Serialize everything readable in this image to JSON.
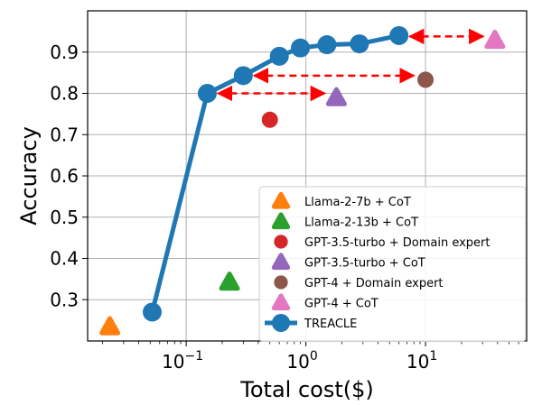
{
  "chart_data": {
    "type": "scatter",
    "xlabel": "Total cost($)",
    "ylabel": "Accuracy",
    "xscale": "log",
    "xlim": [
      0.015,
      70
    ],
    "ylim": [
      0.2,
      1.0
    ],
    "yticks": [
      "0.3",
      "0.4",
      "0.5",
      "0.6",
      "0.7",
      "0.8",
      "0.9"
    ],
    "xticks": [
      {
        "value": 0.1,
        "base": "10",
        "exp": "−1"
      },
      {
        "value": 1,
        "base": "10",
        "exp": "0"
      },
      {
        "value": 10,
        "base": "10",
        "exp": "1"
      }
    ],
    "grid": true,
    "legend_position": "lower-right",
    "series": [
      {
        "name": "Llama-2-7b + CoT",
        "color": "#ff7f0e",
        "marker": "triangle",
        "points": [
          {
            "x": 0.023,
            "y": 0.235
          }
        ]
      },
      {
        "name": "Llama-2-13b + CoT",
        "color": "#2ca02c",
        "marker": "triangle",
        "points": [
          {
            "x": 0.23,
            "y": 0.343
          }
        ]
      },
      {
        "name": "GPT-3.5-turbo + Domain expert",
        "color": "#d62728",
        "marker": "circle",
        "points": [
          {
            "x": 0.5,
            "y": 0.736
          }
        ]
      },
      {
        "name": "GPT-3.5-turbo + CoT",
        "color": "#9467bd",
        "marker": "triangle",
        "points": [
          {
            "x": 1.8,
            "y": 0.79
          }
        ]
      },
      {
        "name": "GPT-4 + Domain expert",
        "color": "#8c564b",
        "marker": "circle",
        "points": [
          {
            "x": 10.0,
            "y": 0.833
          }
        ]
      },
      {
        "name": "GPT-4 + CoT",
        "color": "#e377c2",
        "marker": "triangle",
        "points": [
          {
            "x": 38.0,
            "y": 0.929
          }
        ]
      },
      {
        "name": "TREACLE",
        "color": "#1f77b4",
        "marker": "line-circle",
        "points": [
          {
            "x": 0.052,
            "y": 0.27
          },
          {
            "x": 0.15,
            "y": 0.8
          },
          {
            "x": 0.3,
            "y": 0.843
          },
          {
            "x": 0.6,
            "y": 0.89
          },
          {
            "x": 0.9,
            "y": 0.91
          },
          {
            "x": 1.5,
            "y": 0.918
          },
          {
            "x": 2.8,
            "y": 0.92
          },
          {
            "x": 6.0,
            "y": 0.94
          }
        ]
      }
    ],
    "arrows": [
      {
        "from": {
          "x": 0.15,
          "y": 0.8
        },
        "to": {
          "x": 1.8,
          "y": 0.8
        },
        "color": "#ff0000"
      },
      {
        "from": {
          "x": 0.3,
          "y": 0.843
        },
        "to": {
          "x": 10.0,
          "y": 0.843
        },
        "color": "#ff0000"
      },
      {
        "from": {
          "x": 6.0,
          "y": 0.938
        },
        "to": {
          "x": 38.0,
          "y": 0.938
        },
        "color": "#ff0000"
      }
    ]
  }
}
